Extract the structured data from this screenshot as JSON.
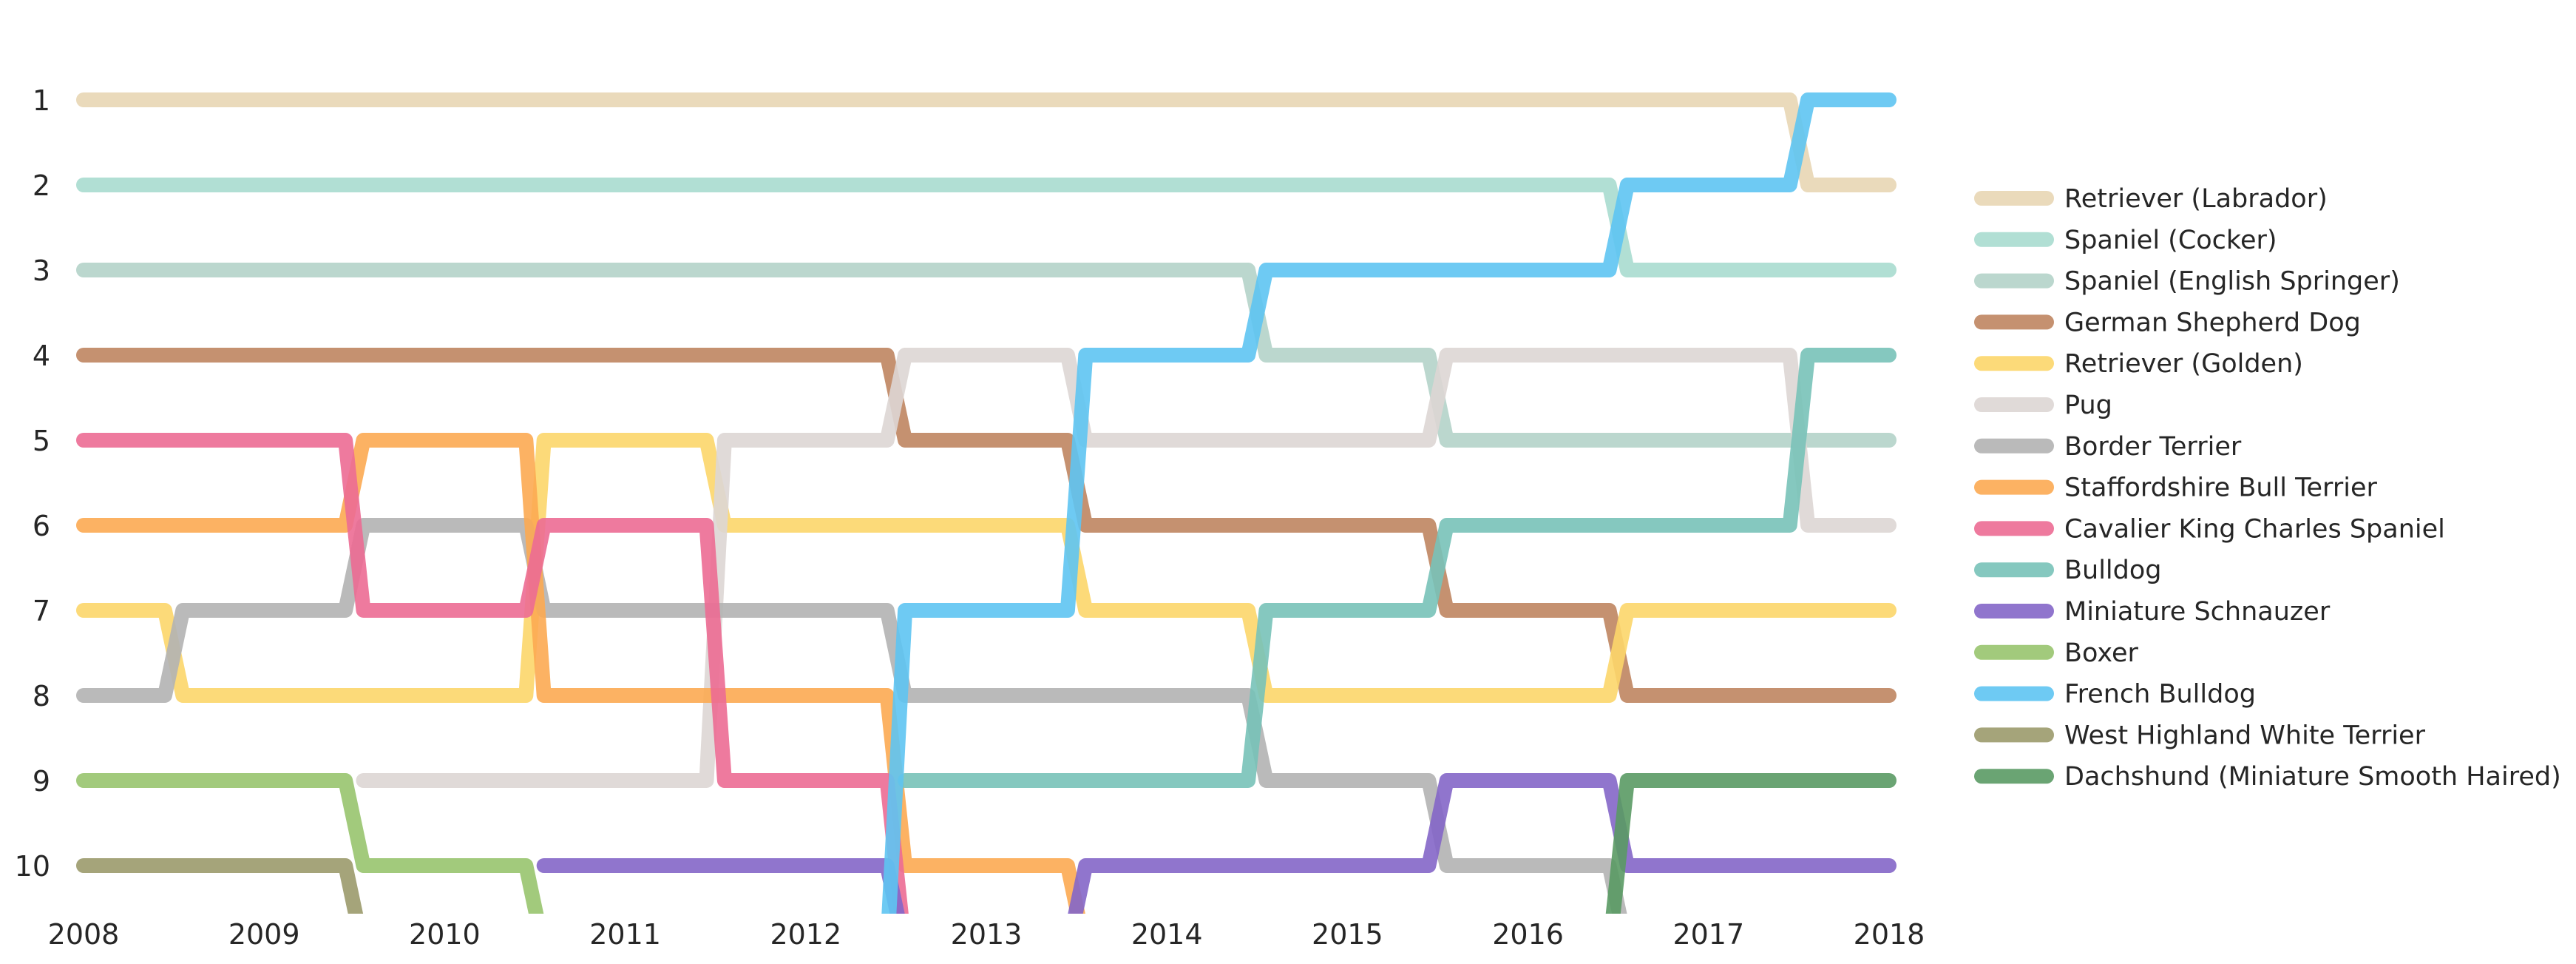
{
  "chart_data": {
    "type": "line",
    "title": "",
    "xlabel": "",
    "ylabel": "",
    "x": [
      2008,
      2009,
      2010,
      2011,
      2012,
      2013,
      2014,
      2015,
      2016,
      2017,
      2018
    ],
    "xtick_labels": [
      "2008",
      "2009",
      "2010",
      "2011",
      "2012",
      "2013",
      "2014",
      "2015",
      "2016",
      "2017",
      "2018"
    ],
    "yticks": [
      1,
      2,
      3,
      4,
      5,
      6,
      7,
      8,
      9,
      10
    ],
    "ytick_labels": [
      "1",
      "2",
      "3",
      "4",
      "5",
      "6",
      "7",
      "8",
      "9",
      "10"
    ],
    "xlim": [
      2008,
      2018
    ],
    "ylim": [
      10,
      1
    ],
    "y_inverted": true,
    "grid": false,
    "legend_position": "right",
    "series": [
      {
        "name": "Retriever (Labrador)",
        "color": "#e8d6b4",
        "values": [
          1,
          1,
          1,
          1,
          1,
          1,
          1,
          1,
          1,
          1,
          2
        ]
      },
      {
        "name": "Spaniel (Cocker)",
        "color": "#a9dccf",
        "values": [
          2,
          2,
          2,
          2,
          2,
          2,
          2,
          2,
          2,
          3,
          3
        ]
      },
      {
        "name": "Spaniel (English Springer)",
        "color": "#b4d3c9",
        "values": [
          3,
          3,
          3,
          3,
          3,
          3,
          3,
          4,
          5,
          5,
          5
        ]
      },
      {
        "name": "German Shepherd Dog",
        "color": "#bf8560",
        "values": [
          4,
          4,
          4,
          4,
          4,
          5,
          6,
          6,
          7,
          8,
          8
        ]
      },
      {
        "name": "Retriever (Golden)",
        "color": "#fcd66a",
        "values": [
          7,
          8,
          8,
          5,
          6,
          6,
          7,
          8,
          8,
          7,
          7
        ]
      },
      {
        "name": "Pug",
        "color": "#ddd6d4",
        "values": [
          null,
          null,
          9,
          9,
          5,
          4,
          5,
          5,
          4,
          4,
          6
        ]
      },
      {
        "name": "Border Terrier",
        "color": "#b3b3b3",
        "values": [
          8,
          7,
          6,
          7,
          7,
          8,
          8,
          9,
          10,
          11,
          null
        ]
      },
      {
        "name": "Staffordshire Bull Terrier",
        "color": "#fcaa52",
        "values": [
          6,
          6,
          5,
          8,
          8,
          10,
          11,
          null,
          null,
          null,
          null
        ]
      },
      {
        "name": "Cavalier King Charles Spaniel",
        "color": "#ec6c94",
        "values": [
          5,
          5,
          7,
          6,
          9,
          11,
          null,
          null,
          null,
          null,
          null
        ]
      },
      {
        "name": "Bulldog",
        "color": "#78c2b8",
        "values": [
          null,
          null,
          null,
          null,
          null,
          9,
          9,
          7,
          6,
          6,
          4
        ]
      },
      {
        "name": "Miniature Schnauzer",
        "color": "#8466c8",
        "values": [
          null,
          null,
          null,
          10,
          10,
          11,
          10,
          10,
          9,
          10,
          10
        ]
      },
      {
        "name": "Boxer",
        "color": "#98c46e",
        "values": [
          9,
          9,
          10,
          11,
          null,
          null,
          null,
          null,
          null,
          null,
          null
        ]
      },
      {
        "name": "French Bulldog",
        "color": "#5ec4f2",
        "values": [
          null,
          null,
          null,
          null,
          11,
          7,
          4,
          3,
          3,
          2,
          1
        ]
      },
      {
        "name": "West Highland White Terrier",
        "color": "#9b9a6c",
        "values": [
          10,
          10,
          11,
          null,
          null,
          null,
          null,
          null,
          null,
          null,
          null
        ]
      },
      {
        "name": "Dachshund (Miniature Smooth Haired)",
        "color": "#5a9a64",
        "values": [
          null,
          null,
          null,
          null,
          null,
          null,
          null,
          null,
          11,
          9,
          9
        ]
      }
    ]
  }
}
